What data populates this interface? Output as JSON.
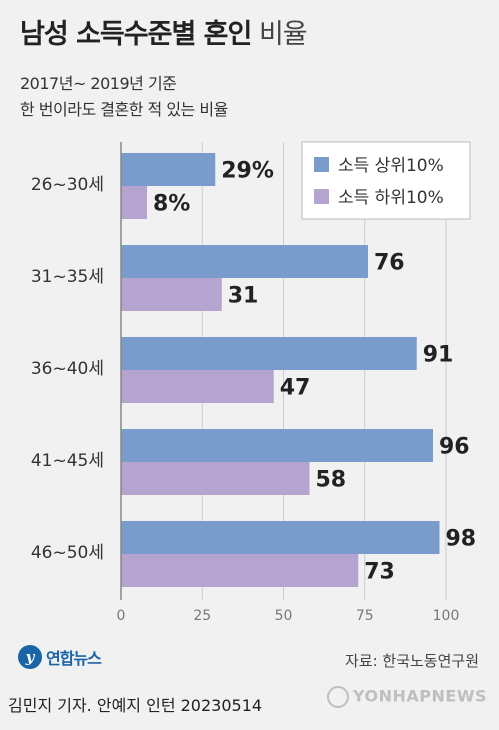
{
  "title_bold": "남성 소득수준별 혼인",
  "title_light": "비율",
  "subtitle_line1": "2017년~ 2019년 기준",
  "subtitle_line2": "한 번이라도 결혼한 적 있는 비율",
  "source": "자료: 한국노동연구원",
  "logo_text": "연합뉴스",
  "logo_mark": "y",
  "byline": "김민지 기자. 안예지 인턴  20230514",
  "watermark": "YONHAPNEWS",
  "colors": {
    "top": "#7a9ccd",
    "bottom": "#b4a4cf",
    "grid": "#cccccc",
    "axis": "#888888"
  },
  "chart_data": {
    "type": "bar",
    "orientation": "horizontal",
    "categories": [
      "26~30세",
      "31~35세",
      "36~40세",
      "41~45세",
      "46~50세"
    ],
    "series": [
      {
        "name": "소득 상위10%",
        "values": [
          29,
          76,
          91,
          96,
          98
        ],
        "labels": [
          "29%",
          "76",
          "91",
          "96",
          "98"
        ]
      },
      {
        "name": "소득 하위10%",
        "values": [
          8,
          31,
          47,
          58,
          73
        ],
        "labels": [
          "8%",
          "31",
          "47",
          "58",
          "73"
        ]
      }
    ],
    "xlim": [
      0,
      100
    ],
    "xticks": [
      0,
      25,
      50,
      75,
      100
    ],
    "legend": "top-right",
    "grid": true
  }
}
